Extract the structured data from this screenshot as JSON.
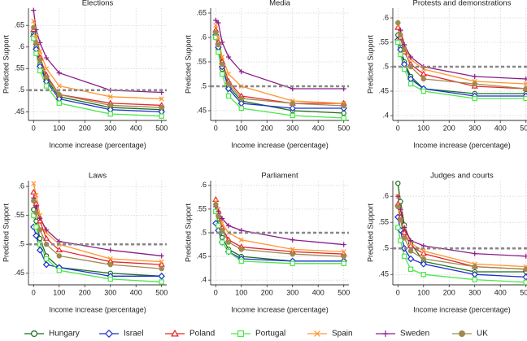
{
  "chart_data": [
    {
      "type": "line",
      "title": "Elections",
      "xlabel": "Income increase (percentage)",
      "ylabel": "Predicted Support",
      "x": [
        0,
        10,
        25,
        50,
        100,
        300,
        500
      ],
      "xlim": [
        -20,
        520
      ],
      "xticks": [
        0,
        100,
        200,
        300,
        400,
        500
      ],
      "ylim": [
        0.43,
        0.69
      ],
      "yticks": [
        {
          "value": 0.45,
          "label": ".45"
        },
        {
          "value": 0.5,
          "label": ".5"
        },
        {
          "value": 0.55,
          "label": ".55"
        },
        {
          "value": 0.6,
          "label": ".6"
        },
        {
          "value": 0.65,
          "label": ".65"
        }
      ],
      "hline": 0.5,
      "grid": true,
      "series": [
        {
          "name": "Hungary",
          "color": "#1b6e1b",
          "marker": "circle-open",
          "values": [
            0.63,
            0.6,
            0.56,
            0.525,
            0.485,
            0.46,
            0.455
          ]
        },
        {
          "name": "Israel",
          "color": "#1c2fd0",
          "marker": "diamond",
          "values": [
            0.625,
            0.595,
            0.555,
            0.52,
            0.48,
            0.455,
            0.45
          ]
        },
        {
          "name": "Poland",
          "color": "#e5262b",
          "marker": "triangle",
          "values": [
            0.64,
            0.61,
            0.575,
            0.535,
            0.49,
            0.47,
            0.465
          ]
        },
        {
          "name": "Portugal",
          "color": "#4be84b",
          "marker": "square",
          "values": [
            0.62,
            0.585,
            0.545,
            0.51,
            0.47,
            0.445,
            0.44
          ]
        },
        {
          "name": "Spain",
          "color": "#ff9630",
          "marker": "x",
          "values": [
            0.66,
            0.625,
            0.59,
            0.55,
            0.51,
            0.485,
            0.48
          ]
        },
        {
          "name": "Sweden",
          "color": "#8a1d8a",
          "marker": "plus",
          "values": [
            0.685,
            0.64,
            0.61,
            0.575,
            0.54,
            0.5,
            0.495
          ]
        },
        {
          "name": "UK",
          "color": "#a08a4e",
          "marker": "circle",
          "values": [
            0.645,
            0.61,
            0.57,
            0.53,
            0.49,
            0.465,
            0.46
          ]
        }
      ]
    },
    {
      "type": "line",
      "title": "Media",
      "xlabel": "Income increase (percentage)",
      "ylabel": "Predicted Support",
      "x": [
        0,
        10,
        25,
        50,
        100,
        300,
        500
      ],
      "xlim": [
        -20,
        520
      ],
      "xticks": [
        0,
        100,
        200,
        300,
        400,
        500
      ],
      "ylim": [
        0.43,
        0.66
      ],
      "yticks": [
        {
          "value": 0.45,
          "label": ".45"
        },
        {
          "value": 0.5,
          "label": ".5"
        },
        {
          "value": 0.55,
          "label": ".55"
        },
        {
          "value": 0.6,
          "label": ".6"
        },
        {
          "value": 0.65,
          "label": ".65"
        }
      ],
      "hline": 0.5,
      "grid": true,
      "series": [
        {
          "name": "Hungary",
          "color": "#1b6e1b",
          "marker": "circle-open",
          "values": [
            0.6,
            0.575,
            0.535,
            0.5,
            0.47,
            0.45,
            0.445
          ]
        },
        {
          "name": "Israel",
          "color": "#1c2fd0",
          "marker": "diamond",
          "values": [
            0.605,
            0.58,
            0.54,
            0.495,
            0.465,
            0.455,
            0.455
          ]
        },
        {
          "name": "Poland",
          "color": "#e5262b",
          "marker": "triangle",
          "values": [
            0.615,
            0.59,
            0.55,
            0.51,
            0.48,
            0.465,
            0.465
          ]
        },
        {
          "name": "Portugal",
          "color": "#4be84b",
          "marker": "square",
          "values": [
            0.6,
            0.57,
            0.525,
            0.48,
            0.455,
            0.44,
            0.435
          ]
        },
        {
          "name": "Spain",
          "color": "#ff9630",
          "marker": "x",
          "values": [
            0.625,
            0.6,
            0.56,
            0.525,
            0.5,
            0.47,
            0.465
          ]
        },
        {
          "name": "Sweden",
          "color": "#8a1d8a",
          "marker": "plus",
          "values": [
            0.635,
            0.63,
            0.59,
            0.56,
            0.53,
            0.495,
            0.495
          ]
        },
        {
          "name": "UK",
          "color": "#a08a4e",
          "marker": "circle",
          "values": [
            0.61,
            0.585,
            0.545,
            0.505,
            0.475,
            0.465,
            0.46
          ]
        }
      ]
    },
    {
      "type": "line",
      "title": "Protests and demonstrations",
      "xlabel": "Income increase (percentage)",
      "ylabel": "Predicted Support",
      "x": [
        0,
        10,
        25,
        50,
        100,
        300,
        500
      ],
      "xlim": [
        -20,
        520
      ],
      "xticks": [
        0,
        100,
        200,
        300,
        400,
        500
      ],
      "ylim": [
        0.39,
        0.62
      ],
      "yticks": [
        {
          "value": 0.4,
          "label": ".4"
        },
        {
          "value": 0.45,
          "label": ".45"
        },
        {
          "value": 0.5,
          "label": ".5"
        },
        {
          "value": 0.55,
          "label": ".55"
        },
        {
          "value": 0.6,
          "label": ".6"
        }
      ],
      "hline": 0.5,
      "grid": true,
      "series": [
        {
          "name": "Hungary",
          "color": "#1b6e1b",
          "marker": "circle-open",
          "values": [
            0.565,
            0.54,
            0.51,
            0.48,
            0.455,
            0.445,
            0.445
          ]
        },
        {
          "name": "Israel",
          "color": "#1c2fd0",
          "marker": "diamond",
          "values": [
            0.555,
            0.535,
            0.505,
            0.475,
            0.455,
            0.44,
            0.44
          ]
        },
        {
          "name": "Poland",
          "color": "#e5262b",
          "marker": "triangle",
          "values": [
            0.58,
            0.56,
            0.53,
            0.505,
            0.485,
            0.46,
            0.455
          ]
        },
        {
          "name": "Portugal",
          "color": "#4be84b",
          "marker": "square",
          "values": [
            0.55,
            0.525,
            0.495,
            0.465,
            0.45,
            0.435,
            0.435
          ]
        },
        {
          "name": "Spain",
          "color": "#ff9630",
          "marker": "x",
          "values": [
            0.585,
            0.57,
            0.54,
            0.515,
            0.495,
            0.47,
            0.465
          ]
        },
        {
          "name": "Sweden",
          "color": "#8a1d8a",
          "marker": "plus",
          "values": [
            0.59,
            0.575,
            0.545,
            0.52,
            0.5,
            0.48,
            0.475
          ]
        },
        {
          "name": "UK",
          "color": "#a08a4e",
          "marker": "circle",
          "values": [
            0.59,
            0.565,
            0.535,
            0.5,
            0.475,
            0.465,
            0.455
          ]
        }
      ]
    },
    {
      "type": "line",
      "title": "Laws",
      "xlabel": "Income increase (percentage)",
      "ylabel": "Predicted Support",
      "x": [
        0,
        10,
        25,
        50,
        100,
        300,
        500
      ],
      "xlim": [
        -20,
        520
      ],
      "xticks": [
        0,
        100,
        200,
        300,
        400,
        500
      ],
      "ylim": [
        0.43,
        0.61
      ],
      "yticks": [
        {
          "value": 0.45,
          "label": ".45"
        },
        {
          "value": 0.5,
          "label": ".5"
        },
        {
          "value": 0.55,
          "label": ".55"
        },
        {
          "value": 0.6,
          "label": ".6"
        }
      ],
      "hline": 0.5,
      "grid": true,
      "series": [
        {
          "name": "Hungary",
          "color": "#1b6e1b",
          "marker": "circle-open",
          "values": [
            0.56,
            0.54,
            0.51,
            0.48,
            0.46,
            0.45,
            0.445
          ]
        },
        {
          "name": "Israel",
          "color": "#1c2fd0",
          "marker": "diamond",
          "values": [
            0.53,
            0.515,
            0.49,
            0.465,
            0.46,
            0.445,
            0.445
          ]
        },
        {
          "name": "Poland",
          "color": "#e5262b",
          "marker": "triangle",
          "values": [
            0.59,
            0.57,
            0.54,
            0.51,
            0.49,
            0.47,
            0.465
          ]
        },
        {
          "name": "Portugal",
          "color": "#4be84b",
          "marker": "square",
          "values": [
            0.55,
            0.53,
            0.5,
            0.475,
            0.455,
            0.44,
            0.435
          ]
        },
        {
          "name": "Spain",
          "color": "#ff9630",
          "marker": "x",
          "values": [
            0.605,
            0.585,
            0.55,
            0.52,
            0.5,
            0.475,
            0.47
          ]
        },
        {
          "name": "Sweden",
          "color": "#8a1d8a",
          "marker": "plus",
          "values": [
            0.58,
            0.565,
            0.545,
            0.525,
            0.505,
            0.49,
            0.48
          ]
        },
        {
          "name": "UK",
          "color": "#a08a4e",
          "marker": "circle",
          "values": [
            0.575,
            0.555,
            0.525,
            0.5,
            0.48,
            0.465,
            0.458
          ]
        }
      ]
    },
    {
      "type": "line",
      "title": "Parliament",
      "xlabel": "Income increase (percentage)",
      "ylabel": "Predicted Support",
      "x": [
        0,
        10,
        25,
        50,
        100,
        300,
        500
      ],
      "xlim": [
        -20,
        520
      ],
      "xticks": [
        0,
        100,
        200,
        300,
        400,
        500
      ],
      "ylim": [
        0.39,
        0.61
      ],
      "yticks": [
        {
          "value": 0.4,
          "label": ".4"
        },
        {
          "value": 0.45,
          "label": ".45"
        },
        {
          "value": 0.5,
          "label": ".5"
        },
        {
          "value": 0.55,
          "label": ".55"
        },
        {
          "value": 0.6,
          "label": ".6"
        }
      ],
      "hline": 0.5,
      "grid": true,
      "series": [
        {
          "name": "Hungary",
          "color": "#1b6e1b",
          "marker": "circle-open",
          "values": [
            0.545,
            0.52,
            0.49,
            0.465,
            0.45,
            0.44,
            0.44
          ]
        },
        {
          "name": "Israel",
          "color": "#1c2fd0",
          "marker": "diamond",
          "values": [
            0.52,
            0.505,
            0.48,
            0.46,
            0.445,
            0.44,
            0.44
          ]
        },
        {
          "name": "Poland",
          "color": "#e5262b",
          "marker": "triangle",
          "values": [
            0.57,
            0.545,
            0.51,
            0.485,
            0.47,
            0.46,
            0.455
          ]
        },
        {
          "name": "Portugal",
          "color": "#4be84b",
          "marker": "square",
          "values": [
            0.545,
            0.515,
            0.48,
            0.46,
            0.44,
            0.435,
            0.435
          ]
        },
        {
          "name": "Spain",
          "color": "#ff9630",
          "marker": "x",
          "values": [
            0.565,
            0.55,
            0.52,
            0.5,
            0.485,
            0.465,
            0.46
          ]
        },
        {
          "name": "Sweden",
          "color": "#8a1d8a",
          "marker": "plus",
          "values": [
            0.555,
            0.545,
            0.53,
            0.515,
            0.505,
            0.485,
            0.475
          ]
        },
        {
          "name": "UK",
          "color": "#a08a4e",
          "marker": "circle",
          "values": [
            0.56,
            0.535,
            0.505,
            0.48,
            0.465,
            0.455,
            0.45
          ]
        }
      ]
    },
    {
      "type": "line",
      "title": "Judges and courts",
      "xlabel": "Income increase (percentage)",
      "ylabel": "Predicted Support",
      "x": [
        0,
        10,
        25,
        50,
        100,
        300,
        500
      ],
      "xlim": [
        -20,
        520
      ],
      "xticks": [
        0,
        100,
        200,
        300,
        400,
        500
      ],
      "ylim": [
        0.43,
        0.63
      ],
      "yticks": [
        {
          "value": 0.45,
          "label": ".45"
        },
        {
          "value": 0.5,
          "label": ".5"
        },
        {
          "value": 0.55,
          "label": ".55"
        },
        {
          "value": 0.6,
          "label": ".6"
        }
      ],
      "hline": 0.5,
      "grid": true,
      "series": [
        {
          "name": "Hungary",
          "color": "#1b6e1b",
          "marker": "circle-open",
          "values": [
            0.625,
            0.59,
            0.545,
            0.51,
            0.475,
            0.455,
            0.455
          ]
        },
        {
          "name": "Israel",
          "color": "#1c2fd0",
          "marker": "diamond",
          "values": [
            0.56,
            0.535,
            0.5,
            0.48,
            0.47,
            0.45,
            0.445
          ]
        },
        {
          "name": "Poland",
          "color": "#e5262b",
          "marker": "triangle",
          "values": [
            0.585,
            0.56,
            0.53,
            0.505,
            0.49,
            0.465,
            0.46
          ]
        },
        {
          "name": "Portugal",
          "color": "#4be84b",
          "marker": "square",
          "values": [
            0.54,
            0.515,
            0.485,
            0.46,
            0.45,
            0.44,
            0.435
          ]
        },
        {
          "name": "Spain",
          "color": "#ff9630",
          "marker": "x",
          "values": [
            0.6,
            0.575,
            0.54,
            0.51,
            0.495,
            0.47,
            0.465
          ]
        },
        {
          "name": "Sweden",
          "color": "#8a1d8a",
          "marker": "plus",
          "values": [
            0.6,
            0.575,
            0.54,
            0.515,
            0.505,
            0.49,
            0.485
          ]
        },
        {
          "name": "UK",
          "color": "#a08a4e",
          "marker": "circle",
          "values": [
            0.58,
            0.555,
            0.52,
            0.495,
            0.48,
            0.465,
            0.46
          ]
        }
      ]
    }
  ]
}
